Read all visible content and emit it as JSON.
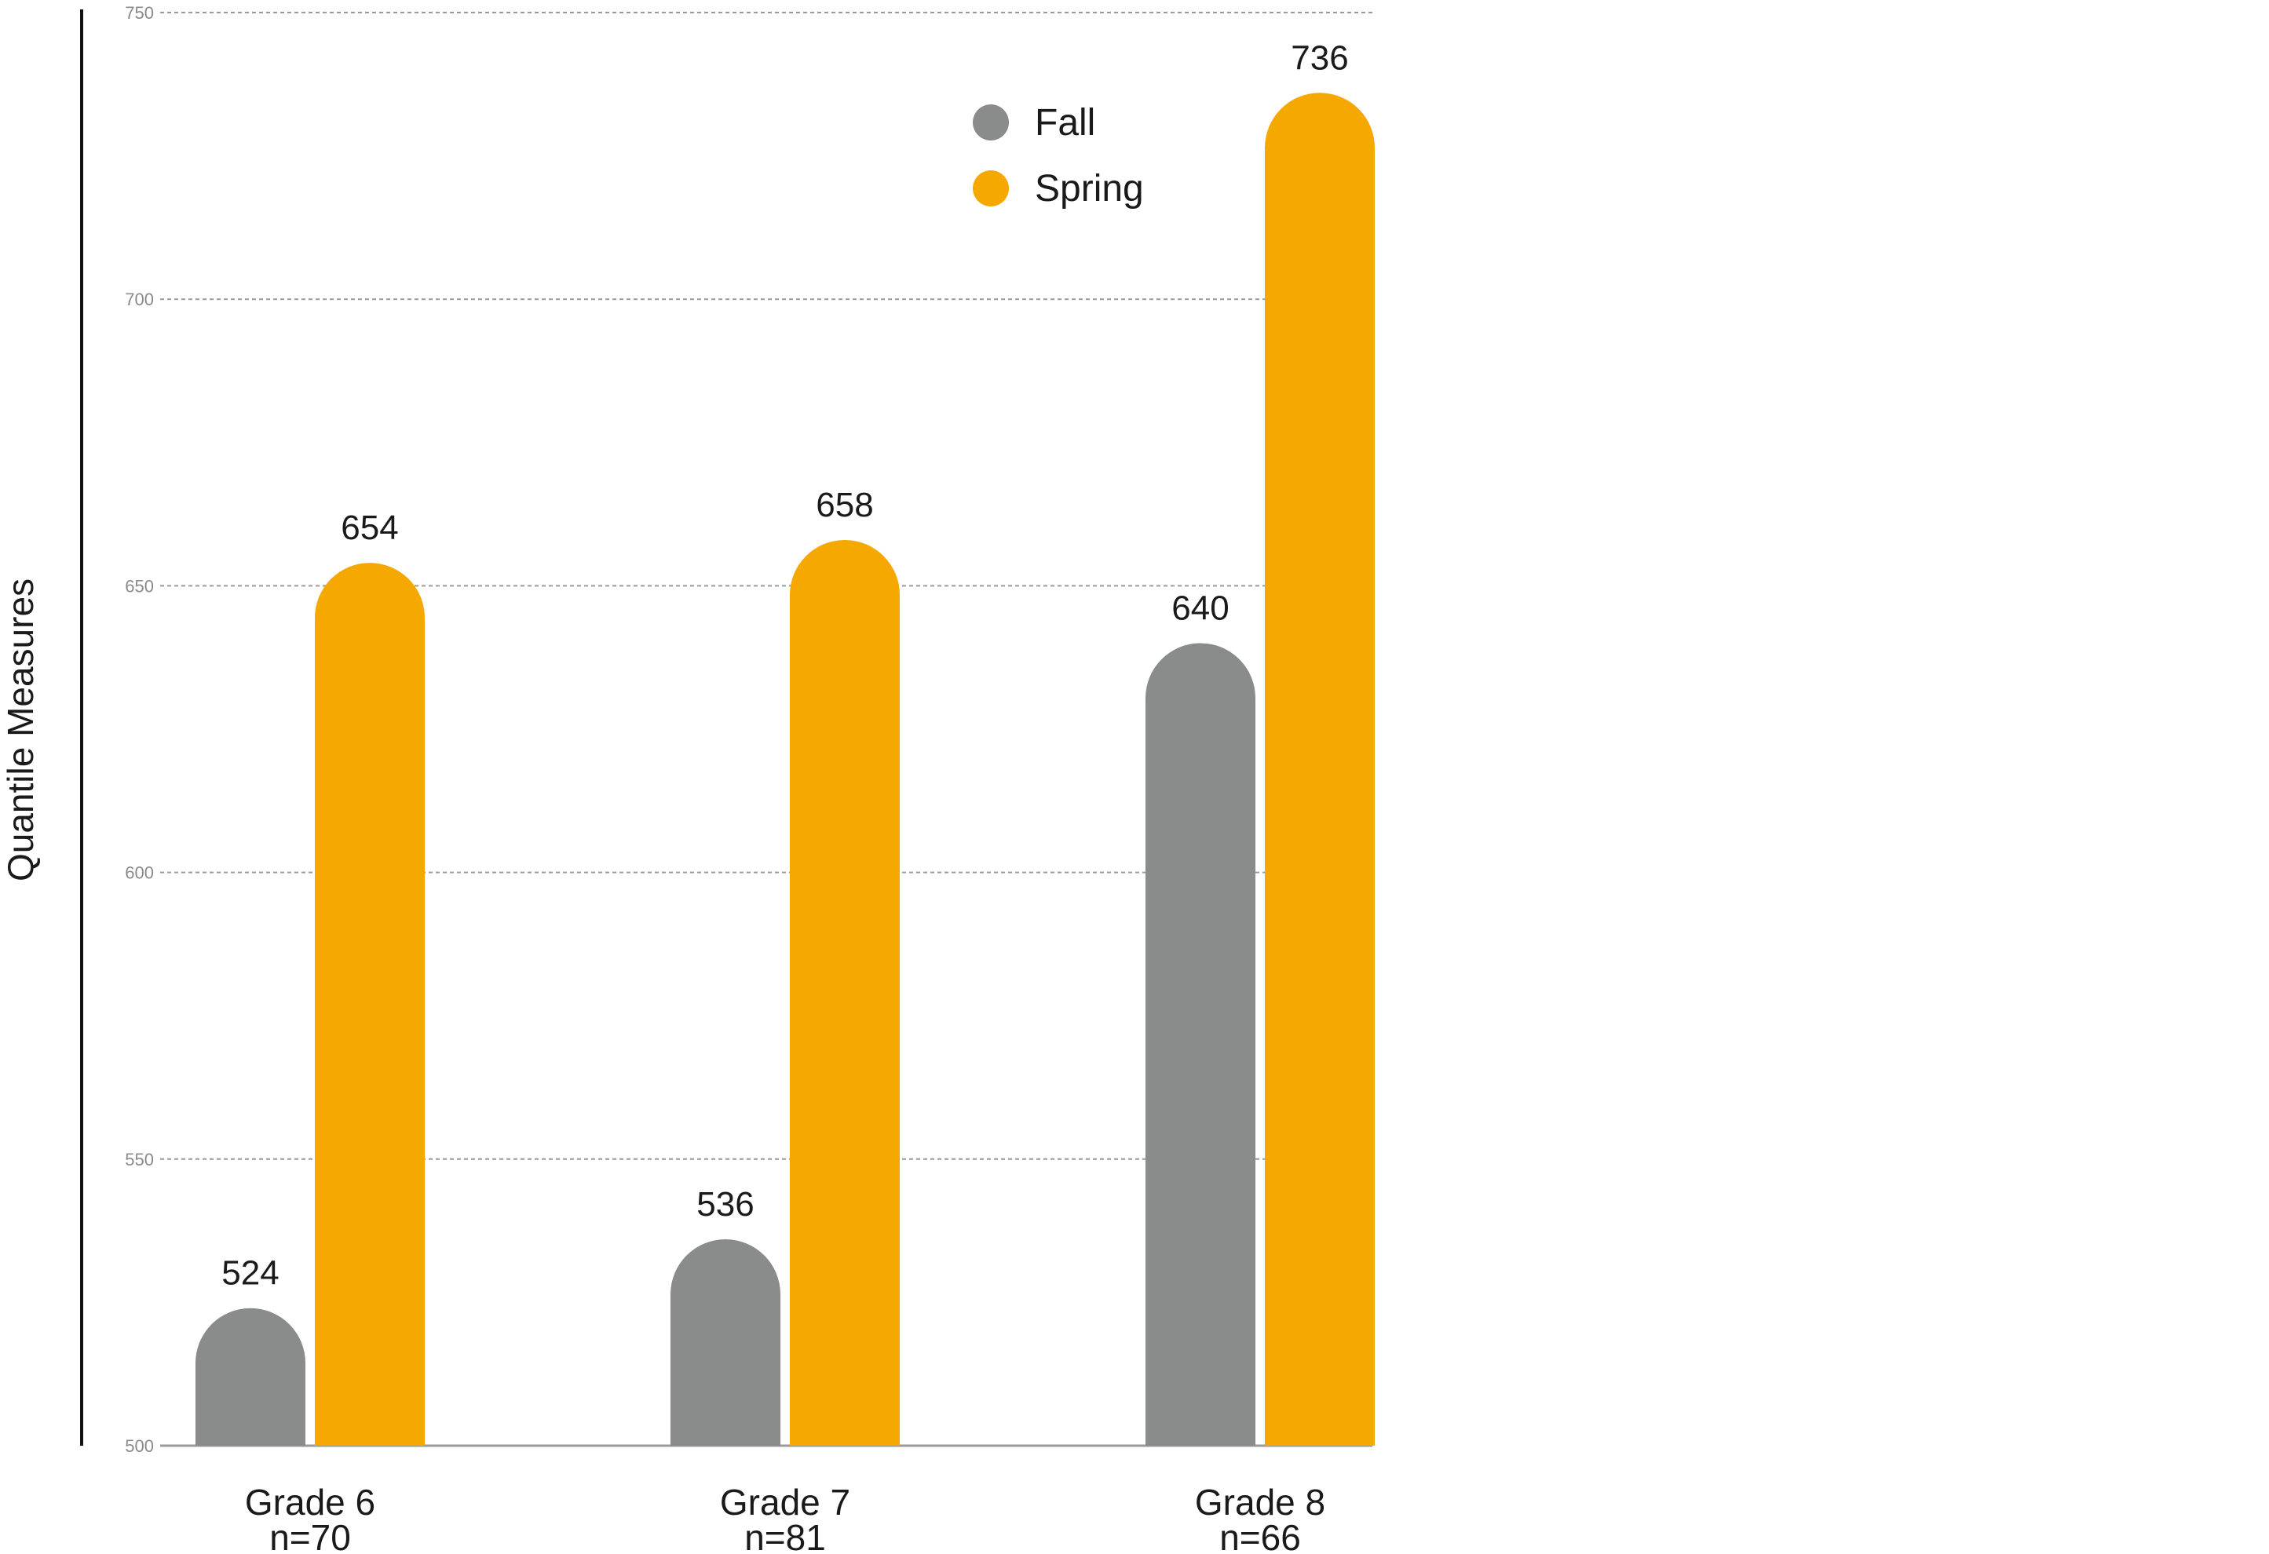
{
  "chart_data": {
    "type": "bar",
    "ylabel": "Quantile Measures",
    "ylim": [
      500,
      750
    ],
    "yticks": [
      500,
      550,
      600,
      650,
      700,
      750
    ],
    "grid": true,
    "legend_position": "top-right",
    "categories": [
      "Grade 6",
      "Grade 7",
      "Grade 8"
    ],
    "category_notes": [
      "n=70",
      "n=81",
      "n=66"
    ],
    "series": [
      {
        "name": "Fall",
        "color": "#8a8c8c",
        "values": [
          524,
          536,
          640
        ]
      },
      {
        "name": "Spring",
        "color": "#f5a800",
        "values": [
          654,
          658,
          736
        ]
      }
    ]
  }
}
